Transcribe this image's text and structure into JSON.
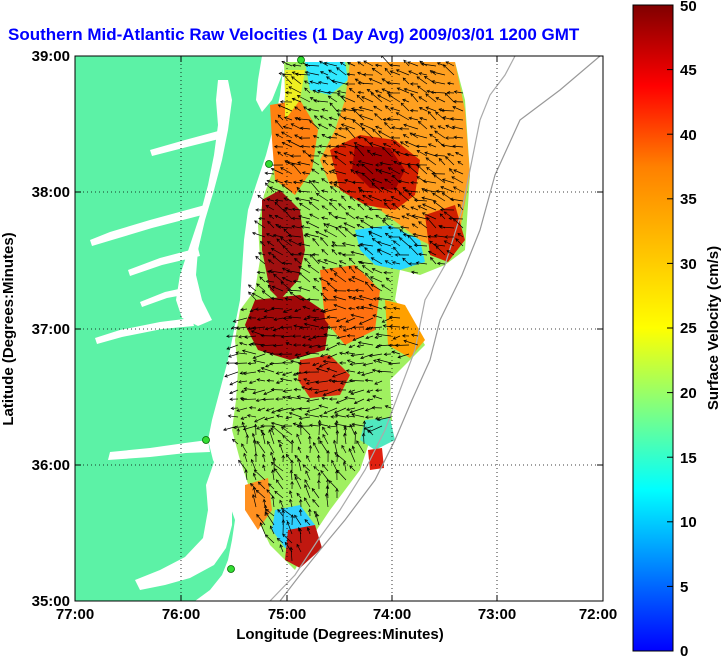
{
  "title": "Southern Mid-Atlantic Raw Velocities (1 Day Avg) 2009/03/01 1200 GMT",
  "xlabel": "Longitude (Degrees:Minutes)",
  "ylabel": "Latitude (Degrees:Minutes)",
  "x_ticks": [
    "77:00",
    "76:00",
    "75:00",
    "74:00",
    "73:00",
    "72:00"
  ],
  "y_ticks": [
    "39:00",
    "38:00",
    "37:00",
    "36:00",
    "35:00"
  ],
  "colorbar": {
    "label": "Surface Velocity (cm/s)",
    "ticks": [
      "0",
      "5",
      "10",
      "15",
      "20",
      "25",
      "30",
      "35",
      "40",
      "45",
      "50"
    ],
    "min": 0,
    "max": 50
  },
  "colors": {
    "title": "#0000ff",
    "land": "#5cf2a6",
    "grid": "#000000",
    "vector": "#000000",
    "station": "#33dd33"
  },
  "chart_data": {
    "type": "heatmap",
    "title": "Southern Mid-Atlantic Raw Velocities (1 Day Avg) 2009/03/01 1200 GMT",
    "xlabel": "Longitude (Degrees:Minutes)",
    "ylabel": "Latitude (Degrees:Minutes)",
    "xlim": [
      -77.0,
      -72.0
    ],
    "ylim": [
      35.0,
      39.0
    ],
    "grid": true,
    "colorbar_range": [
      0,
      50
    ],
    "colorbar_label": "Surface Velocity (cm/s)",
    "stations": [
      {
        "lon": -74.85,
        "lat": 38.98
      },
      {
        "lon": -75.1,
        "lat": 38.22
      },
      {
        "lon": -75.72,
        "lat": 36.18
      },
      {
        "lon": -75.47,
        "lat": 35.24
      }
    ]
  }
}
